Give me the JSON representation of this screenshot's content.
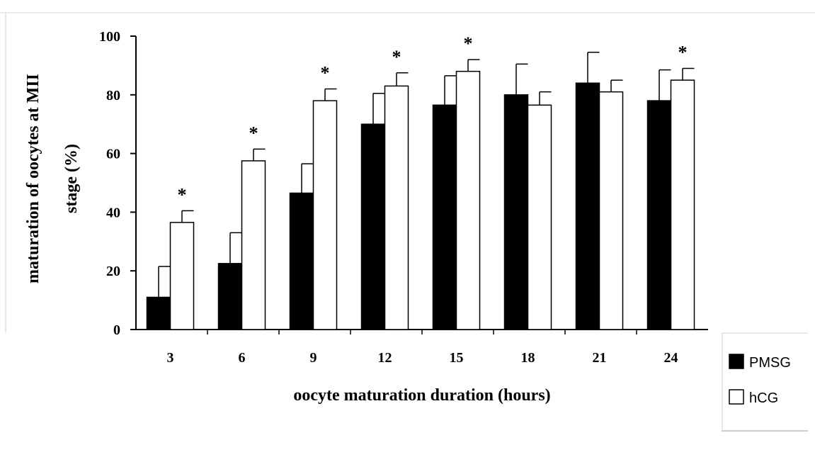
{
  "chart_data": {
    "type": "bar",
    "categories": [
      "3",
      "6",
      "9",
      "12",
      "15",
      "18",
      "21",
      "24"
    ],
    "series": [
      {
        "name": "PMSG",
        "color": "#000000",
        "values": [
          11,
          22.5,
          46.5,
          70,
          76.5,
          80,
          84,
          78
        ],
        "errors": [
          10.5,
          10.5,
          10,
          10.5,
          10,
          10.5,
          10.5,
          10.5
        ]
      },
      {
        "name": "hCG",
        "color": "#ffffff",
        "values": [
          36.5,
          57.5,
          78,
          83,
          88,
          76.5,
          81,
          85
        ],
        "errors": [
          4,
          4,
          4,
          4.5,
          4,
          4.5,
          4,
          4
        ]
      }
    ],
    "significance": [
      "*",
      "*",
      "*",
      "*",
      "*",
      "",
      "",
      "*"
    ],
    "ylim": [
      0,
      100
    ],
    "yticks": [
      "0",
      "20",
      "40",
      "60",
      "80",
      "100"
    ],
    "ylabel_line1": "maturation of oocytes at MII",
    "ylabel_line2": "stage (%)",
    "xlabel": "oocyte maturation duration (hours)",
    "legend_position": "bottom-right",
    "grid": false
  }
}
